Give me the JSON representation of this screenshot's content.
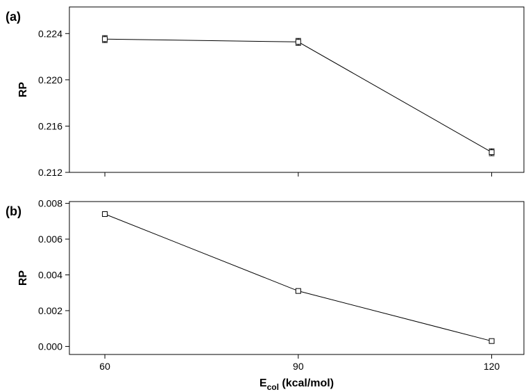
{
  "chart_data": [
    {
      "type": "line",
      "panel_label": "(a)",
      "ylabel": "RP",
      "x": [
        60,
        90,
        120
      ],
      "series": [
        {
          "color": "#000000",
          "values": [
            0.22352,
            0.22328,
            0.21374
          ],
          "errors": [
            0.0003,
            0.0003,
            0.0003
          ]
        }
      ],
      "xlim": [
        54.5,
        125
      ],
      "xticks": [
        60,
        90,
        120
      ],
      "ylim": [
        0.212,
        0.2263
      ],
      "yticks": [
        0.212,
        0.216,
        {
          "value": 0.22,
          "label": "0.220"
        },
        0.224
      ]
    },
    {
      "type": "line",
      "panel_label": "(b)",
      "ylabel": "RP",
      "xlabel": {
        "main": "E",
        "sub": "col",
        "rest": " (kcal/mol)"
      },
      "x": [
        60,
        90,
        120
      ],
      "series": [
        {
          "color": "#000000",
          "values": [
            0.0074,
            0.0031,
            0.0003
          ],
          "errors": [
            6e-05,
            5e-05,
            5e-05
          ]
        }
      ],
      "xlim": [
        54.5,
        125
      ],
      "xticks": [
        60,
        90,
        120
      ],
      "ylim": [
        -0.00045,
        0.0081
      ],
      "yticks": [
        {
          "value": 0,
          "label": "0.000"
        },
        0.002,
        0.004,
        0.006,
        0.008
      ]
    }
  ]
}
